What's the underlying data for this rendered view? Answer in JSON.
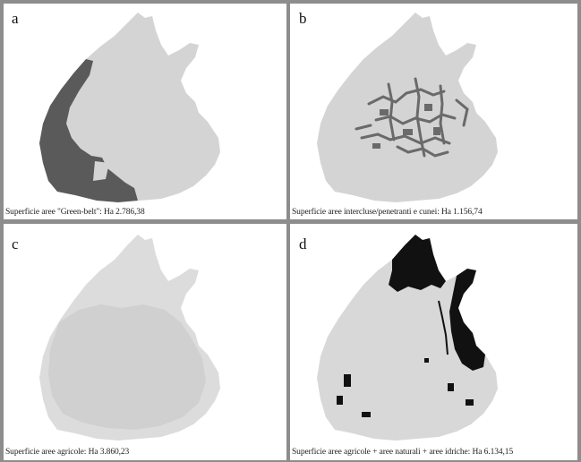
{
  "panels": [
    {
      "letter": "a",
      "caption": "Superficie aree \"Green-belt\": Ha 2.786,38",
      "highlight_color": "#5a5a5a",
      "base_color": "#d4d4d4"
    },
    {
      "letter": "b",
      "caption": "Superficie aree intercluse/penetranti e cunei: Ha 1.156,74",
      "highlight_color": "#6a6a6a",
      "base_color": "#d4d4d4"
    },
    {
      "letter": "c",
      "caption": "Superficie aree agricole: Ha 3.860,23",
      "highlight_color": "#d0d0d0",
      "base_color": "#dcdcdc"
    },
    {
      "letter": "d",
      "caption": "Superficie aree agricole + aree naturali + aree idriche: Ha 6.134,15",
      "highlight_color": "#111111",
      "base_color": "#d8d8d8"
    }
  ]
}
